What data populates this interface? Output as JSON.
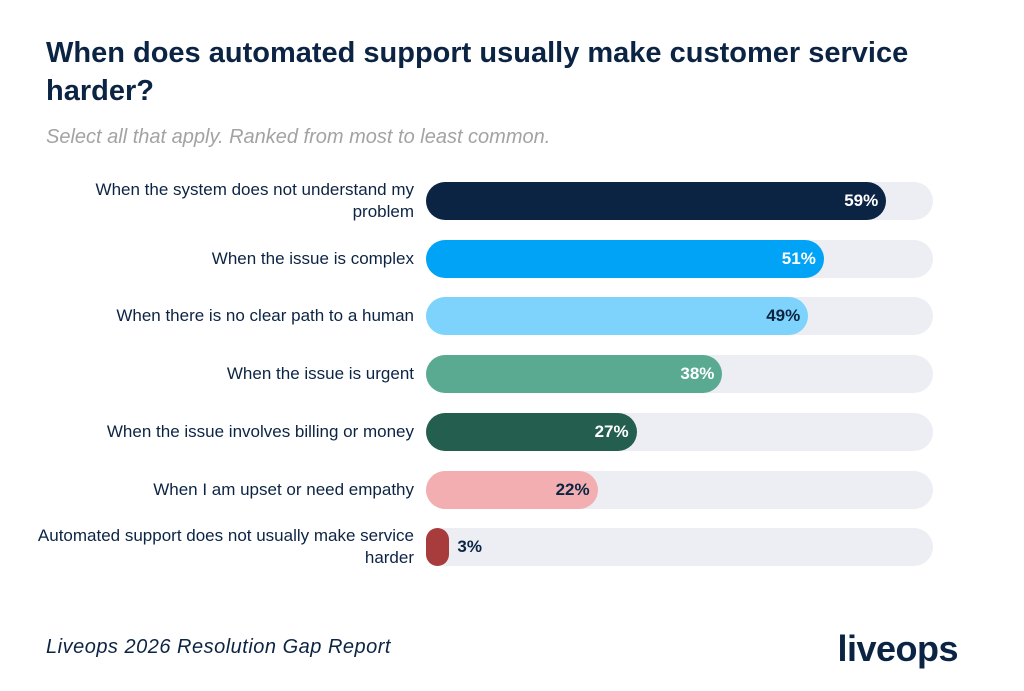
{
  "chart_data": {
    "type": "hbar",
    "title": "When does automated support usually make customer service harder?",
    "subtitle": "Select all that apply. Ranked from most to least common.",
    "categories": [
      "When the system does not understand my problem",
      "When the issue is complex",
      "When there is no clear path to a human",
      "When the issue is urgent",
      "When the issue involves billing or money",
      "When I am upset or need empathy",
      "Automated support does not usually make service harder"
    ],
    "values": [
      59,
      51,
      49,
      38,
      27,
      22,
      3
    ],
    "value_labels": [
      "59%",
      "51%",
      "49%",
      "38%",
      "27%",
      "22%",
      "3%"
    ],
    "colors": [
      "#0c2444",
      "#00a3f5",
      "#7dd3fc",
      "#5aaa92",
      "#245e4e",
      "#f2aeb0",
      "#a83c3c"
    ],
    "label_colors": [
      "#ffffff",
      "#ffffff",
      "#0c2444",
      "#ffffff",
      "#ffffff",
      "#0c2444",
      "#0c2444"
    ],
    "track_color": "#eceef3",
    "xlim": [
      0,
      65
    ],
    "source": "Liveops 2026 Resolution Gap Report",
    "logo": "liveops"
  }
}
